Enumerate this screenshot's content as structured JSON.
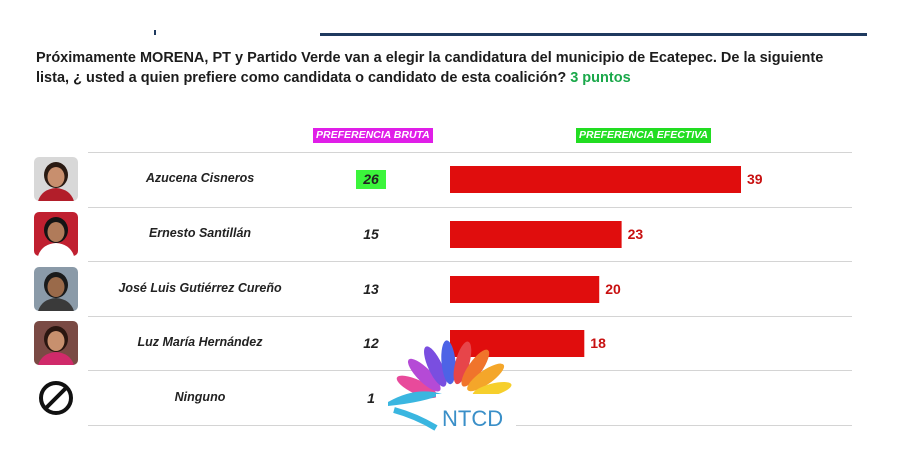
{
  "question": {
    "text": "Próximamente MORENA, PT y Partido Verde van a elegir la candidatura del municipio de Ecatepec. De la siguiente lista, ¿ usted a quien prefiere como candidata o candidato de esta coalición?",
    "points": "3 puntos"
  },
  "chart_data": {
    "type": "bar",
    "orientation": "horizontal",
    "title": "",
    "categories": [
      "Azucena Cisneros",
      "Ernesto Santillán",
      "José Luis Gutiérrez Cureño",
      "Luz María Hernández",
      "Ninguno"
    ],
    "series": [
      {
        "name": "PREFERENCIA BRUTA",
        "values": [
          26,
          15,
          13,
          12,
          1
        ],
        "display": "table-column",
        "highlight_color": "#3bf53b",
        "tag_color": "#e01ee8"
      },
      {
        "name": "PREFERENCIA EFECTIVA",
        "values": [
          39,
          23,
          20,
          18,
          null
        ],
        "bar_color": "#e00d0d",
        "label_color": "#c81010",
        "tag_color": "#22dd22"
      }
    ],
    "xlim": [
      0,
      39
    ],
    "grid": false,
    "legend": "column-headers"
  },
  "avatars": [
    "person-photo-azucena",
    "person-photo-ernesto",
    "person-photo-jose-luis",
    "person-photo-luz-maria",
    "prohibited-icon"
  ],
  "logo": {
    "text": "NTCD"
  }
}
